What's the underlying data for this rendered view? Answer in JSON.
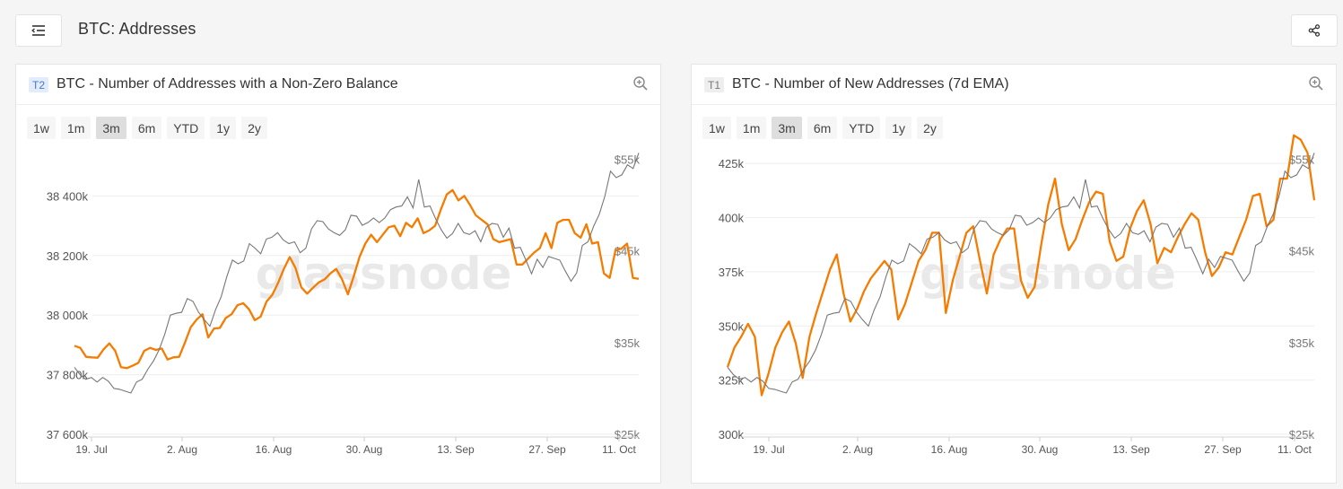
{
  "header": {
    "title": "BTC: Addresses",
    "menu_icon": "menu-collapse-icon",
    "share_icon": "share-icon"
  },
  "brand": {
    "watermark": "glassnode",
    "orange": "#f7931a",
    "line_orange": "#f57c00",
    "price_gray": "#777777"
  },
  "ranges": [
    "1w",
    "1m",
    "3m",
    "6m",
    "YTD",
    "1y",
    "2y"
  ],
  "active_range": "3m",
  "cards": [
    {
      "tier": "T2",
      "title": "BTC - Number of Addresses with a Non-Zero Balance"
    },
    {
      "tier": "T1",
      "title": "BTC - Number of New Addresses (7d EMA)"
    }
  ],
  "chart_data": [
    {
      "type": "line",
      "title": "BTC - Number of Addresses with a Non-Zero Balance",
      "x_ticks": [
        "19. Jul",
        "2. Aug",
        "16. Aug",
        "30. Aug",
        "13. Sep",
        "27. Sep",
        "11. Oct"
      ],
      "y_ticks": [
        "37 600k",
        "37 800k",
        "38 000k",
        "38 200k",
        "38 400k"
      ],
      "y_tick_values": [
        37600000,
        37800000,
        38000000,
        38200000,
        38400000
      ],
      "ylim": [
        37600000,
        38600000
      ],
      "right_ticks": [
        "$25k",
        "$35k",
        "$45k",
        "$55k"
      ],
      "right_tick_values": [
        25000,
        35000,
        45000,
        55000
      ],
      "right_lim": [
        25000,
        57500
      ],
      "series": [
        {
          "name": "Addresses",
          "axis": "left",
          "values": [
            37897000,
            37890000,
            37860000,
            37858000,
            37857000,
            37885000,
            37905000,
            37880000,
            37825000,
            37822000,
            37830000,
            37840000,
            37880000,
            37890000,
            37883000,
            37888000,
            37851000,
            37858000,
            37860000,
            37908000,
            37960000,
            37985000,
            38003000,
            37925000,
            37955000,
            37957000,
            37990000,
            38003000,
            38033000,
            38040000,
            38020000,
            37983000,
            37995000,
            38045000,
            38068000,
            38108000,
            38155000,
            38195000,
            38158000,
            38093000,
            38072000,
            38092000,
            38110000,
            38120000,
            38140000,
            38155000,
            38120000,
            38070000,
            38130000,
            38195000,
            38240000,
            38270000,
            38245000,
            38270000,
            38295000,
            38300000,
            38265000,
            38310000,
            38295000,
            38325000,
            38275000,
            38285000,
            38300000,
            38355000,
            38405000,
            38420000,
            38385000,
            38400000,
            38370000,
            38335000,
            38320000,
            38305000,
            38255000,
            38245000,
            38250000,
            38255000,
            38170000,
            38170000,
            38190000,
            38210000,
            38225000,
            38275000,
            38225000,
            38310000,
            38320000,
            38320000,
            38275000,
            38260000,
            38305000,
            38240000,
            38245000,
            38140000,
            38125000,
            38218000,
            38223000,
            38240000,
            38125000,
            38122000
          ]
        },
        {
          "name": "Price (USD)",
          "axis": "right",
          "values": [
            32300,
            31500,
            31000,
            31200,
            30700,
            31200,
            30800,
            30000,
            29900,
            29700,
            29500,
            30700,
            31000,
            32100,
            33000,
            34200,
            35900,
            38000,
            38200,
            38300,
            39800,
            39500,
            38300,
            37500,
            36800,
            38600,
            40000,
            42200,
            44000,
            43600,
            43900,
            45800,
            45300,
            44700,
            46300,
            46500,
            47000,
            46200,
            45800,
            46000,
            44800,
            45300,
            47400,
            48300,
            48200,
            47400,
            47000,
            46700,
            47300,
            48900,
            48800,
            47800,
            48100,
            48600,
            48100,
            48600,
            49500,
            49800,
            49900,
            50900,
            49700,
            52800,
            49800,
            49900,
            48500,
            47300,
            46400,
            46900,
            48000,
            47000,
            46800,
            47200,
            46000,
            47600,
            48000,
            47900,
            46500,
            47500,
            45300,
            45400,
            44000,
            42500,
            44100,
            43200,
            44400,
            44200,
            44000,
            42800,
            41700,
            42600,
            45600,
            46000,
            47700,
            49000,
            51000,
            53700,
            53000,
            53300,
            54400,
            54000,
            55700
          ]
        }
      ]
    },
    {
      "type": "line",
      "title": "BTC - Number of New Addresses (7d EMA)",
      "x_ticks": [
        "19. Jul",
        "2. Aug",
        "16. Aug",
        "30. Aug",
        "13. Sep",
        "27. Sep",
        "11. Oct"
      ],
      "y_ticks": [
        "300k",
        "325k",
        "350k",
        "375k",
        "400k",
        "425k"
      ],
      "y_tick_values": [
        300000,
        325000,
        350000,
        375000,
        400000,
        425000
      ],
      "ylim": [
        300000,
        437500
      ],
      "right_ticks": [
        "$25k",
        "$35k",
        "$45k",
        "$55k"
      ],
      "right_tick_values": [
        25000,
        35000,
        45000,
        55000
      ],
      "right_lim": [
        25000,
        57500
      ],
      "series": [
        {
          "name": "New Addresses (7d EMA)",
          "axis": "left",
          "values": [
            331000,
            340000,
            345000,
            351000,
            345000,
            318000,
            328000,
            340000,
            347000,
            352000,
            342000,
            326000,
            345000,
            356000,
            366000,
            376000,
            383000,
            365000,
            352000,
            358000,
            366000,
            372000,
            376000,
            380000,
            376000,
            353000,
            360000,
            370000,
            380000,
            385000,
            393000,
            393000,
            356000,
            371000,
            382000,
            393000,
            396000,
            380000,
            365000,
            383000,
            390000,
            395000,
            395000,
            371000,
            363000,
            368000,
            388000,
            406000,
            418000,
            397000,
            385000,
            390000,
            399000,
            407000,
            412000,
            411000,
            389000,
            380000,
            382000,
            395000,
            403000,
            408000,
            397000,
            379000,
            386000,
            384000,
            391000,
            397000,
            402000,
            399000,
            384000,
            373000,
            377000,
            384000,
            383000,
            391000,
            399000,
            410000,
            411000,
            396000,
            399000,
            418000,
            418000,
            438000,
            436000,
            430000,
            408000
          ]
        },
        {
          "name": "Price (USD)",
          "axis": "right",
          "values": [
            32300,
            31500,
            31000,
            31200,
            30700,
            31200,
            30800,
            30000,
            29900,
            29700,
            29500,
            30700,
            31000,
            32100,
            33000,
            34200,
            35900,
            38000,
            38200,
            38300,
            39800,
            39500,
            38300,
            37500,
            36800,
            38600,
            40000,
            42200,
            44000,
            43600,
            43900,
            45800,
            45300,
            44700,
            46300,
            46500,
            47000,
            46200,
            45800,
            46000,
            44800,
            45300,
            47400,
            48300,
            48200,
            47400,
            47000,
            46700,
            47300,
            48900,
            48800,
            47800,
            48100,
            48600,
            48100,
            48600,
            49500,
            49800,
            49900,
            50900,
            49700,
            52800,
            49800,
            49900,
            48500,
            47300,
            46400,
            46900,
            48000,
            47000,
            46800,
            47200,
            46000,
            47600,
            48000,
            47900,
            46500,
            47500,
            45300,
            45400,
            44000,
            42500,
            44100,
            43200,
            44400,
            44200,
            44000,
            42800,
            41700,
            42600,
            45600,
            46000,
            47700,
            49000,
            51000,
            53700,
            53000,
            53300,
            54400,
            54000,
            55700
          ]
        }
      ]
    }
  ]
}
